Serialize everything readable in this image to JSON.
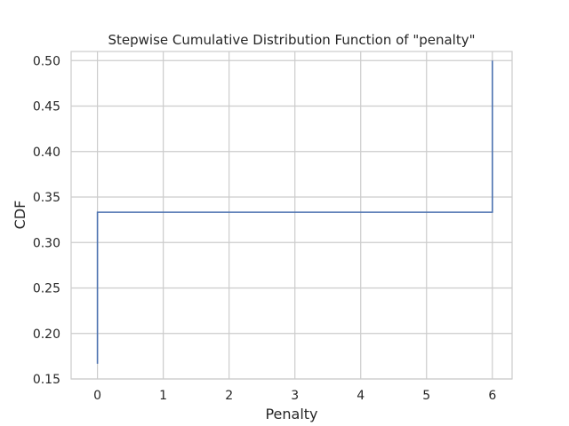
{
  "chart_data": {
    "type": "line",
    "title": "Stepwise Cumulative Distribution Function of \"penalty\"",
    "xlabel": "Penalty",
    "ylabel": "CDF",
    "xlim": [
      -0.4,
      6.3
    ],
    "ylim": [
      0.15,
      0.51
    ],
    "xticks": [
      0,
      1,
      2,
      3,
      4,
      5,
      6
    ],
    "xtick_labels": [
      "0",
      "1",
      "2",
      "3",
      "4",
      "5",
      "6"
    ],
    "yticks": [
      0.15,
      0.2,
      0.25,
      0.3,
      0.35,
      0.4,
      0.45,
      0.5
    ],
    "ytick_labels": [
      "0.15",
      "0.20",
      "0.25",
      "0.30",
      "0.35",
      "0.40",
      "0.45",
      "0.50"
    ],
    "grid": true,
    "step": "post",
    "series": [
      {
        "x": [
          0,
          0,
          6,
          6
        ],
        "y": [
          0.1667,
          0.3333,
          0.3333,
          0.5
        ]
      }
    ],
    "colors": {
      "line": "#4c72b0",
      "grid": "#cccccc",
      "frame": "#cccccc",
      "text": "#262626"
    }
  }
}
